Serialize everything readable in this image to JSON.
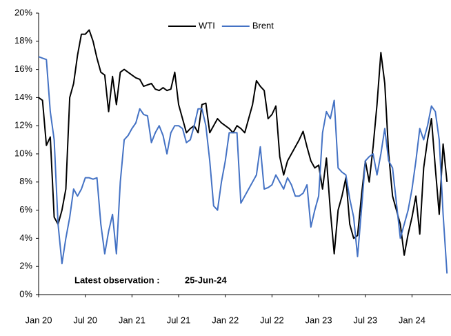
{
  "chart_data": {
    "type": "line",
    "categories": [
      "Jan 20",
      null,
      null,
      null,
      null,
      null,
      null,
      null,
      null,
      null,
      null,
      null,
      "Jul 20",
      null,
      null,
      null,
      null,
      null,
      null,
      null,
      null,
      null,
      null,
      null,
      "Jan 21",
      null,
      null,
      null,
      null,
      null,
      null,
      null,
      null,
      null,
      null,
      null,
      "Jul 21",
      null,
      null,
      null,
      null,
      null,
      null,
      null,
      null,
      null,
      null,
      null,
      "Jan 22",
      null,
      null,
      null,
      null,
      null,
      null,
      null,
      null,
      null,
      null,
      null,
      "Jul 22",
      null,
      null,
      null,
      null,
      null,
      null,
      null,
      null,
      null,
      null,
      null,
      "Jan 23",
      null,
      null,
      null,
      null,
      null,
      null,
      null,
      null,
      null,
      null,
      null,
      "Jul 23",
      null,
      null,
      null,
      null,
      null,
      null,
      null,
      null,
      null,
      null,
      null,
      "Jan 24",
      null,
      null,
      null,
      null,
      null,
      null,
      null,
      null,
      null
    ],
    "series": [
      {
        "name": "WTI",
        "color": "#000000",
        "values": [
          14,
          13.8,
          10.6,
          11.2,
          5.5,
          5,
          6,
          7.5,
          14,
          15,
          17,
          18.5,
          18.5,
          18.8,
          18,
          16.8,
          15.8,
          15.6,
          13,
          15.5,
          13.5,
          15.8,
          16,
          15.8,
          15.6,
          15.4,
          15.3,
          14.8,
          14.9,
          15,
          14.6,
          14.5,
          14.7,
          14.5,
          14.6,
          15.8,
          13.5,
          12.5,
          11.5,
          11.8,
          12,
          11.5,
          13.5,
          13.6,
          11.5,
          12,
          12.5,
          12.2,
          12,
          11.8,
          11.5,
          12,
          11.8,
          11.5,
          12.5,
          13.5,
          15.2,
          14.8,
          14.5,
          12.5,
          12.8,
          13.4,
          9.8,
          8.5,
          9.5,
          10,
          10.5,
          11,
          11.6,
          10.5,
          9.5,
          9,
          9.2,
          7.5,
          9.7,
          6,
          2.9,
          6,
          7,
          8.3,
          5,
          4,
          4.2,
          7,
          9.5,
          8,
          10.5,
          13.5,
          17.2,
          15,
          10,
          7,
          6,
          5,
          2.8,
          4.3,
          5.5,
          7,
          4.3,
          9,
          11,
          12.5,
          9,
          5.7,
          10.7,
          8
        ]
      },
      {
        "name": "Brent",
        "color": "#4472c4",
        "values": [
          16.9,
          16.8,
          16.7,
          13,
          11,
          5,
          2.2,
          4,
          5.5,
          7.5,
          7,
          7.5,
          8.3,
          8.3,
          8.2,
          8.3,
          5,
          2.9,
          4.5,
          5.7,
          2.9,
          8,
          11,
          11.3,
          11.8,
          12.2,
          13.2,
          12.8,
          12.7,
          10.8,
          11.5,
          12,
          11.3,
          10,
          11.5,
          12,
          12,
          11.8,
          10.8,
          11,
          12,
          13.2,
          13.2,
          12,
          9.5,
          6.3,
          6,
          8,
          9.5,
          11.5,
          11.5,
          11.5,
          6.5,
          7,
          7.5,
          8,
          8.5,
          10.5,
          7.5,
          7.6,
          7.8,
          8.5,
          8,
          7.5,
          8.3,
          7.8,
          7,
          7,
          7.2,
          7.8,
          4.8,
          6,
          7,
          11.5,
          13,
          12.5,
          13.8,
          9,
          8.7,
          8.5,
          6.8,
          5.5,
          2.7,
          6,
          9.5,
          9.8,
          10,
          8.5,
          10,
          11.8,
          9.5,
          9,
          6.5,
          4,
          5,
          6,
          7.5,
          9.5,
          11.8,
          11,
          12,
          13.4,
          13,
          11,
          5.7,
          1.5
        ]
      }
    ],
    "ylim": [
      0,
      20
    ],
    "yticks": [
      {
        "value": 0,
        "label": "0%"
      },
      {
        "value": 2,
        "label": "2%"
      },
      {
        "value": 4,
        "label": "4%"
      },
      {
        "value": 6,
        "label": "6%"
      },
      {
        "value": 8,
        "label": "8%"
      },
      {
        "value": 10,
        "label": "10%"
      },
      {
        "value": 12,
        "label": "12%"
      },
      {
        "value": 14,
        "label": "14%"
      },
      {
        "value": 16,
        "label": "16%"
      },
      {
        "value": 18,
        "label": "18%"
      },
      {
        "value": 20,
        "label": "20%"
      }
    ],
    "annotations": [
      "Latest observation :",
      "25-Jun-24"
    ],
    "legend": "top"
  }
}
